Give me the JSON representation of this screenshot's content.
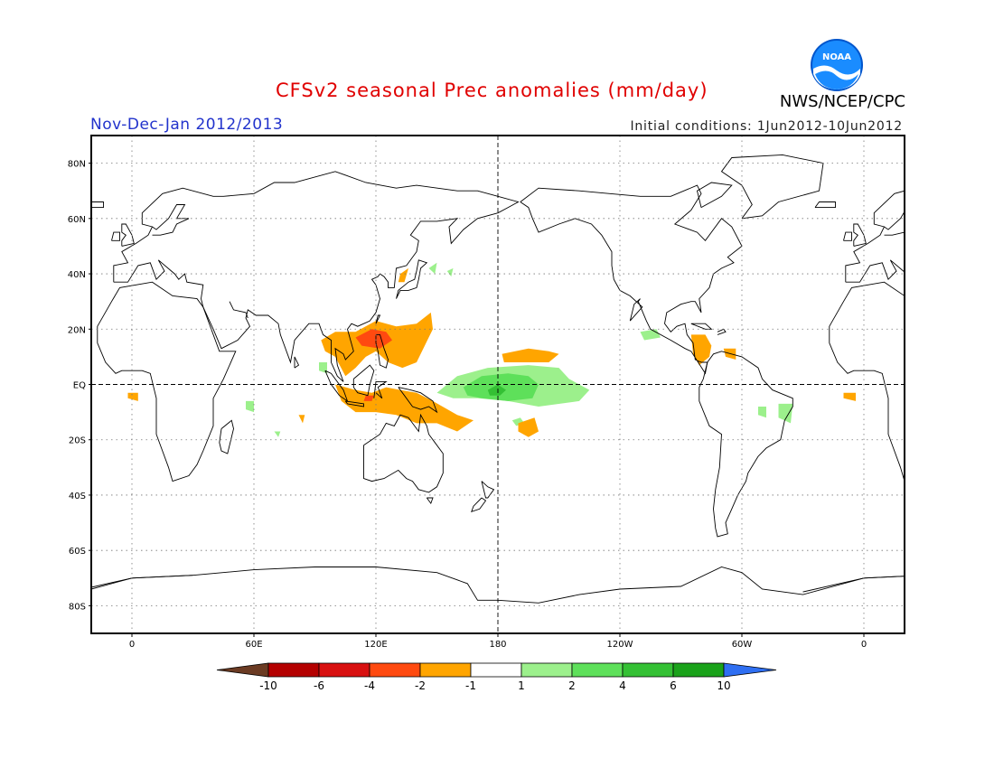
{
  "title": "CFSv2 seasonal Prec anomalies (mm/day)",
  "season": "Nov-Dec-Jan 2012/2013",
  "initial_conditions": "Initial conditions: 1Jun2012-10Jun2012",
  "organization": "NWS/NCEP/CPC",
  "logo_text": "NOAA",
  "axes": {
    "lon_ticks": [
      "0",
      "60E",
      "120E",
      "180",
      "120W",
      "60W",
      "0"
    ],
    "lat_ticks": [
      "80N",
      "60N",
      "40N",
      "20N",
      "EQ",
      "20S",
      "40S",
      "60S",
      "80S"
    ],
    "lon_range": [
      -20,
      380
    ],
    "lat_range": [
      -90,
      90
    ]
  },
  "colorbar": {
    "labels": [
      "-10",
      "-6",
      "-4",
      "-2",
      "-1",
      "1",
      "2",
      "4",
      "6",
      "10"
    ],
    "colors": [
      "#6b3b23",
      "#b40000",
      "#d81010",
      "#ff4a10",
      "#ffa500",
      "#ffffff",
      "#9cf08c",
      "#5ee05a",
      "#34c034",
      "#1aa21a",
      "#2f6ff2"
    ]
  },
  "colors": {
    "title": "#e00000",
    "season": "#2233cc",
    "dry_orange": "#ffa500",
    "dry_red": "#ff4a10",
    "wet_light": "#9cf08c",
    "wet_mid": "#5ee05a",
    "wet_dark": "#34c034"
  }
}
